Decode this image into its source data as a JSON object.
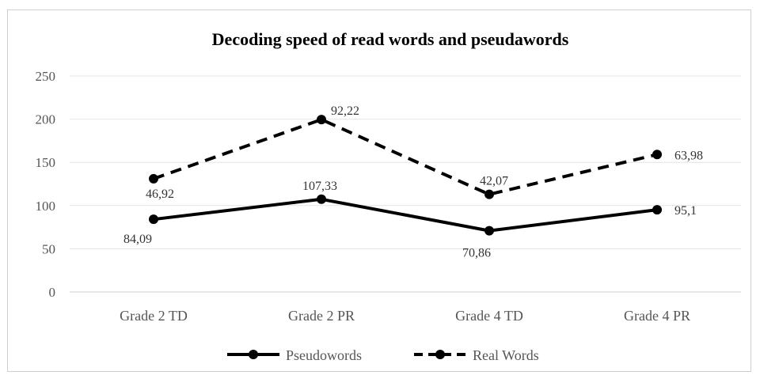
{
  "chart_data": {
    "type": "line",
    "title": "Decoding speed of read words and pseudawords",
    "categories": [
      "Grade 2 TD",
      "Grade 2 PR",
      "Grade 4 TD",
      "Grade 4 PR"
    ],
    "yticks": [
      "0",
      "50",
      "100",
      "150",
      "200",
      "250"
    ],
    "ylim": [
      0,
      250
    ],
    "grid": true,
    "legend_position": "bottom",
    "series": [
      {
        "name": "Pseudowords",
        "style": "solid",
        "color": "#000000",
        "values": [
          84.09,
          107.33,
          70.86,
          95.1
        ],
        "labels": [
          "84,09",
          "107,33",
          "70,86",
          "95,1"
        ]
      },
      {
        "name": "Real Words",
        "style": "dashed",
        "color": "#000000",
        "values": [
          131.01,
          199.55,
          112.93,
          159.08
        ],
        "labels": [
          "46,92",
          "92,22",
          "42,07",
          "63,98"
        ]
      }
    ]
  }
}
